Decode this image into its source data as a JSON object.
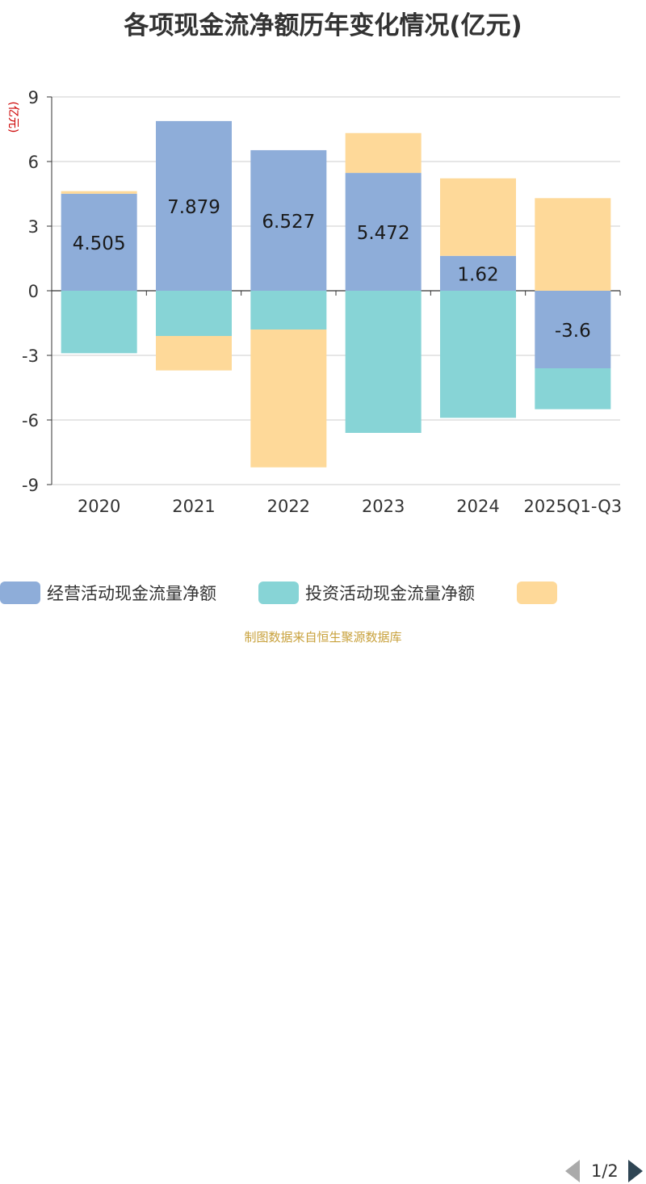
{
  "title": "各项现金流净额历年变化情况(亿元)",
  "source": "制图数据来自恒生聚源数据库",
  "legend": {
    "items": [
      {
        "label": "经营活动现金流量净额",
        "color": "#8eadd9"
      },
      {
        "label": "投资活动现金流量净额",
        "color": "#87d4d6"
      },
      {
        "label": "",
        "color": "#fed999"
      }
    ],
    "pager": "1/2",
    "prev_icon": "triangle-left-icon",
    "next_icon": "triangle-right-icon"
  },
  "chart_data": {
    "type": "bar",
    "stacked": true,
    "title": "各项现金流净额历年变化情况(亿元)",
    "ylabel": "(亿元)",
    "ylim": [
      -9,
      9
    ],
    "yticks": [
      -9,
      -6,
      -3,
      0,
      3,
      6,
      9
    ],
    "grid": true,
    "legend_position": "bottom",
    "categories": [
      "2020",
      "2021",
      "2022",
      "2023",
      "2024",
      "2025Q1-Q3"
    ],
    "series": [
      {
        "name": "经营活动现金流量净额",
        "color": "#8eadd9",
        "values": [
          4.505,
          7.879,
          6.527,
          5.472,
          1.62,
          -3.6
        ],
        "data_labels": [
          "4.505",
          "7.879",
          "6.527",
          "5.472",
          "1.62",
          "-3.6"
        ]
      },
      {
        "name": "投资活动现金流量净额",
        "color": "#87d4d6",
        "values": [
          -2.9,
          -2.1,
          -1.8,
          -6.6,
          -5.9,
          -1.9
        ]
      },
      {
        "name": "",
        "color": "#fed999",
        "values": [
          0.12,
          -1.6,
          -6.4,
          1.85,
          3.6,
          4.3
        ]
      }
    ]
  }
}
